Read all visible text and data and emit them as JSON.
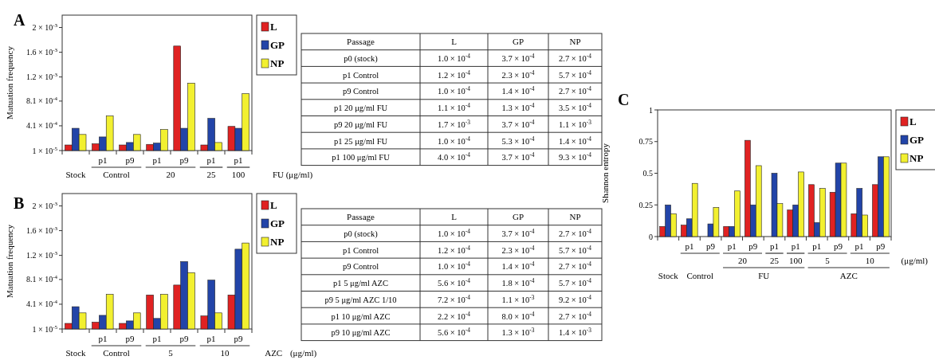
{
  "chart_data": [
    {
      "type": "bar",
      "title": "A",
      "ylabel": "Matuation frequency",
      "categories": [
        null,
        "p1",
        "p9",
        "p1",
        "p9",
        "p1",
        "p1"
      ],
      "series": [
        {
          "name": "L",
          "color": "#e02222",
          "values": [
            0.0001,
            0.00012,
            0.0001,
            0.00011,
            0.0017,
            0.0001,
            0.0004
          ]
        },
        {
          "name": "GP",
          "color": "#2244a8",
          "values": [
            0.00037,
            0.00023,
            0.00014,
            0.00013,
            0.00037,
            0.00053,
            0.00037
          ]
        },
        {
          "name": "NP",
          "color": "#f2f030",
          "values": [
            0.00027,
            0.00057,
            0.00027,
            0.00035,
            0.0011,
            0.00014,
            0.00093
          ]
        }
      ],
      "ylim": [
        1e-05,
        0.0022
      ],
      "yticks": [
        {
          "value": 1e-05,
          "label": "1 × 10$^{-5}$"
        },
        {
          "value": 0.00041,
          "label": "4.1 × 10$^{-4}$"
        },
        {
          "value": 0.00081,
          "label": "8.1 × 10$^{-4}$"
        },
        {
          "value": 0.0012,
          "label": "1.2 × 10$^{-3}$"
        },
        {
          "value": 0.0016,
          "label": "1.6 × 10$^{-3}$"
        },
        {
          "value": 0.002,
          "label": "2 × 10$^{-3}$"
        }
      ],
      "legend": "right",
      "annotations": [
        "Stock",
        "Control",
        "20",
        "25",
        "100",
        "FU (μg/ml)"
      ]
    },
    {
      "type": "other",
      "ylabel": "Passage",
      "categories": [
        "p0 (stock)",
        "p1 Control",
        "p9 Control",
        "p1 20 μg/ml FU",
        "p9 20 μg/ml FU",
        "p1 25 μg/ml FU",
        "p1 100 μg/ml FU"
      ],
      "series": [
        {
          "name": "L",
          "values": [
            0.0001,
            0.00012,
            0.0001,
            0.00011,
            0.0017,
            0.0001,
            0.0004
          ],
          "value_labels": [
            "1.0 × 10$^{-4}$",
            "1.2 × 10$^{-4}$",
            "1.0 × 10$^{-4}$",
            "1.1 × 10$^{-4}$",
            "1.7 × 10$^{-3}$",
            "1.0 × 10$^{-4}$",
            "4.0 × 10$^{-4}$"
          ]
        },
        {
          "name": "GP",
          "values": [
            0.00037,
            0.00023,
            0.00014,
            0.00013,
            0.00037,
            0.00053,
            0.00037
          ],
          "value_labels": [
            "3.7 × 10$^{-4}$",
            "2.3 × 10$^{-4}$",
            "1.4 × 10$^{-4}$",
            "1.3 × 10$^{-4}$",
            "3.7 × 10$^{-4}$",
            "5.3 × 10$^{-4}$",
            "3.7 × 10$^{-4}$"
          ]
        },
        {
          "name": "NP",
          "values": [
            0.00027,
            0.00057,
            0.00027,
            0.00035,
            0.0011,
            0.00014,
            0.00093
          ],
          "value_labels": [
            "2.7 × 10$^{-4}$",
            "5.7 × 10$^{-4}$",
            "2.7 × 10$^{-4}$",
            "3.5 × 10$^{-4}$",
            "1.1 × 10$^{-3}$",
            "1.4 × 10$^{-4}$",
            "9.3 × 10$^{-4}$"
          ]
        }
      ]
    },
    {
      "type": "bar",
      "title": "B",
      "ylabel": "Matuation frequency",
      "categories": [
        null,
        "p1",
        "p9",
        "p1",
        "p9",
        "p1",
        "p9"
      ],
      "series": [
        {
          "name": "L",
          "color": "#e02222",
          "values": [
            0.0001,
            0.00012,
            0.0001,
            0.00056,
            0.00072,
            0.00022,
            0.00056
          ]
        },
        {
          "name": "GP",
          "color": "#2244a8",
          "values": [
            0.00037,
            0.00023,
            0.00014,
            0.00018,
            0.0011,
            0.0008,
            0.0013
          ]
        },
        {
          "name": "NP",
          "color": "#f2f030",
          "values": [
            0.00027,
            0.00057,
            0.00027,
            0.00057,
            0.00092,
            0.00027,
            0.0014
          ]
        }
      ],
      "ylim": [
        1e-05,
        0.0022
      ],
      "yticks": [
        {
          "value": 1e-05,
          "label": "1 × 10$^{-5}$"
        },
        {
          "value": 0.00041,
          "label": "4.1 × 10$^{-4}$"
        },
        {
          "value": 0.00081,
          "label": "8.1 × 10$^{-4}$"
        },
        {
          "value": 0.0012,
          "label": "1.2 × 10$^{-3}$"
        },
        {
          "value": 0.0016,
          "label": "1.6 × 10$^{-3}$"
        },
        {
          "value": 0.002,
          "label": "2 × 10$^{-3}$"
        }
      ],
      "legend": "right",
      "annotations": [
        "Stock",
        "Control",
        "5",
        "10",
        "AZC",
        "(μg/ml)"
      ]
    },
    {
      "type": "other",
      "ylabel": "Passage",
      "categories": [
        "p0 (stock)",
        "p1 Control",
        "p9 Control",
        "p1 5 μg/ml AZC",
        "p9 5 μg/ml AZC 1/10",
        "p1 10 μg/ml AZC",
        "p9 10 μg/ml AZC"
      ],
      "series": [
        {
          "name": "L",
          "values": [
            0.0001,
            0.00012,
            0.0001,
            0.00056,
            0.00072,
            0.00022,
            0.00056
          ],
          "value_labels": [
            "1.0 × 10$^{-4}$",
            "1.2 × 10$^{-4}$",
            "1.0 × 10$^{-4}$",
            "5.6 × 10$^{-4}$",
            "7.2 × 10$^{-4}$",
            "2.2 × 10$^{-4}$",
            "5.6 × 10$^{-4}$"
          ]
        },
        {
          "name": "GP",
          "values": [
            0.00037,
            0.00023,
            0.00014,
            0.00018,
            0.0011,
            0.0008,
            0.0013
          ],
          "value_labels": [
            "3.7 × 10$^{-4}$",
            "2.3 × 10$^{-4}$",
            "1.4 × 10$^{-4}$",
            "1.8 × 10$^{-4}$",
            "1.1 × 10$^{-3}$",
            "8.0 × 10$^{-4}$",
            "1.3 × 10$^{-3}$"
          ]
        },
        {
          "name": "NP",
          "values": [
            0.00027,
            0.00057,
            0.00027,
            0.00057,
            0.00092,
            0.00027,
            0.0014
          ],
          "value_labels": [
            "2.7 × 10$^{-4}$",
            "5.7 × 10$^{-4}$",
            "2.7 × 10$^{-4}$",
            "5.7 × 10$^{-4}$",
            "9.2 × 10$^{-4}$",
            "2.7 × 10$^{-4}$",
            "1.4 × 10$^{-3}$"
          ]
        }
      ]
    },
    {
      "type": "bar",
      "title": "C",
      "ylabel": "Shannon entropy",
      "categories": [
        null,
        "p1",
        "p9",
        "p1",
        "p9",
        "p1",
        "p1",
        "p1",
        "p9",
        "p1",
        "p9"
      ],
      "series": [
        {
          "name": "L",
          "color": "#e02222",
          "values": [
            0.08,
            0.09,
            null,
            0.08,
            0.76,
            null,
            0.21,
            0.41,
            0.35,
            0.18,
            0.41
          ]
        },
        {
          "name": "GP",
          "color": "#2244a8",
          "values": [
            0.25,
            0.14,
            0.1,
            0.08,
            0.25,
            0.5,
            0.25,
            0.11,
            0.58,
            0.38,
            0.63
          ]
        },
        {
          "name": "NP",
          "color": "#f2f030",
          "values": [
            0.18,
            0.42,
            0.23,
            0.36,
            0.56,
            0.26,
            0.51,
            0.38,
            0.58,
            0.17,
            0.63
          ]
        }
      ],
      "ylim": [
        0,
        1
      ],
      "yticks": [
        0,
        0.25,
        0.5,
        0.75,
        1
      ],
      "legend": "right",
      "annotations": [
        "Stock",
        "Control",
        "20",
        "25",
        "100",
        "5",
        "10",
        "(μg/ml)",
        "FU",
        "AZC"
      ]
    }
  ]
}
